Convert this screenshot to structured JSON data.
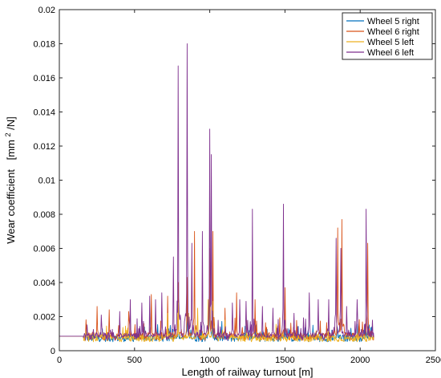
{
  "chart_data": {
    "type": "line",
    "xlabel": "Length of railway turnout [m]",
    "ylabel_main": "Wear coefficient",
    "ylabel_unit_a": "[mm",
    "ylabel_unit_sup": "2",
    "ylabel_unit_b": "/N]",
    "xlim": [
      0,
      2500
    ],
    "ylim": [
      0,
      0.02
    ],
    "xticks": [
      0,
      500,
      1000,
      1500,
      2000,
      2500
    ],
    "xtick_labels": [
      "0",
      "500",
      "1000",
      "1500",
      "2000",
      "2500"
    ],
    "yticks": [
      0,
      0.002,
      0.004,
      0.006,
      0.008,
      0.01,
      0.012,
      0.014,
      0.016,
      0.018,
      0.02
    ],
    "ytick_labels": [
      "0",
      "0.002",
      "0.004",
      "0.006",
      "0.008",
      "0.01",
      "0.012",
      "0.014",
      "0.016",
      "0.018",
      "0.02"
    ],
    "grid": false,
    "legend_position": "top-right",
    "baseline": {
      "x": [
        0,
        160
      ],
      "y": [
        0.00085,
        0.00085
      ]
    },
    "x_range_noisy": [
      160,
      2090
    ],
    "series": [
      {
        "name": "Wheel 5 right",
        "color": "#0072BD",
        "base_level": 0.0007,
        "peaks": [
          [
            790,
            0.0028
          ],
          [
            850,
            0.0026
          ],
          [
            1000,
            0.0045
          ],
          [
            1300,
            0.0012
          ],
          [
            1500,
            0.0013
          ],
          [
            1850,
            0.0012
          ],
          [
            2040,
            0.0012
          ]
        ]
      },
      {
        "name": "Wheel 6 right",
        "color": "#D95319",
        "base_level": 0.0008,
        "peaks": [
          [
            250,
            0.0026
          ],
          [
            330,
            0.0024
          ],
          [
            460,
            0.0023
          ],
          [
            610,
            0.0033
          ],
          [
            720,
            0.0032
          ],
          [
            790,
            0.004
          ],
          [
            850,
            0.0043
          ],
          [
            900,
            0.007
          ],
          [
            1000,
            0.006
          ],
          [
            1020,
            0.007
          ],
          [
            1100,
            0.0025
          ],
          [
            1180,
            0.0034
          ],
          [
            1300,
            0.003
          ],
          [
            1500,
            0.0037
          ],
          [
            1850,
            0.0072
          ],
          [
            1880,
            0.0077
          ],
          [
            2050,
            0.0063
          ]
        ]
      },
      {
        "name": "Wheel 5 left",
        "color": "#EDB120",
        "base_level": 0.0007,
        "peaks": [
          [
            720,
            0.0022
          ],
          [
            790,
            0.0028
          ],
          [
            860,
            0.0022
          ],
          [
            920,
            0.0025
          ],
          [
            990,
            0.003
          ],
          [
            1020,
            0.0029
          ],
          [
            1100,
            0.0018
          ]
        ]
      },
      {
        "name": "Wheel 6 left",
        "color": "#7E2F8E",
        "base_level": 0.0008,
        "peaks": [
          [
            280,
            0.0021
          ],
          [
            400,
            0.0023
          ],
          [
            470,
            0.003
          ],
          [
            550,
            0.0028
          ],
          [
            600,
            0.0032
          ],
          [
            640,
            0.003
          ],
          [
            680,
            0.0034
          ],
          [
            760,
            0.0055
          ],
          [
            790,
            0.0167
          ],
          [
            850,
            0.018
          ],
          [
            880,
            0.0063
          ],
          [
            950,
            0.007
          ],
          [
            1000,
            0.013
          ],
          [
            1010,
            0.0115
          ],
          [
            1150,
            0.0028
          ],
          [
            1200,
            0.003
          ],
          [
            1240,
            0.0029
          ],
          [
            1285,
            0.0083
          ],
          [
            1350,
            0.0026
          ],
          [
            1420,
            0.0025
          ],
          [
            1490,
            0.0086
          ],
          [
            1560,
            0.0022
          ],
          [
            1660,
            0.0034
          ],
          [
            1720,
            0.003
          ],
          [
            1790,
            0.003
          ],
          [
            1840,
            0.0066
          ],
          [
            1870,
            0.006
          ],
          [
            1910,
            0.0026
          ],
          [
            1980,
            0.003
          ],
          [
            2040,
            0.0083
          ],
          [
            2080,
            0.0018
          ]
        ]
      }
    ]
  }
}
